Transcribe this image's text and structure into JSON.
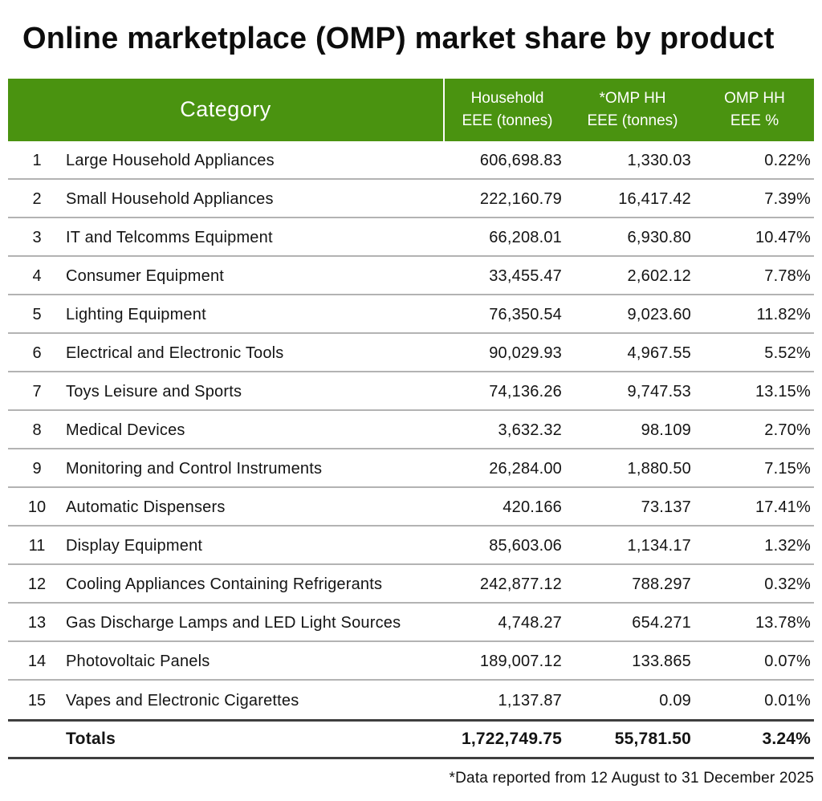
{
  "title": "Online marketplace (OMP) market share by product",
  "table": {
    "headers": {
      "category": "Category",
      "household": {
        "line1": "Household",
        "line2": "EEE (tonnes)"
      },
      "omp": {
        "line1": "*OMP HH",
        "line2": "EEE (tonnes)"
      },
      "pct": {
        "line1": "OMP HH",
        "line2": "EEE %"
      }
    },
    "rows": [
      {
        "num": "1",
        "category": "Large Household Appliances",
        "household_eee": "606,698.83",
        "omp_eee": "1,330.03",
        "omp_pct": "0.22%"
      },
      {
        "num": "2",
        "category": "Small Household Appliances",
        "household_eee": "222,160.79",
        "omp_eee": "16,417.42",
        "omp_pct": "7.39%"
      },
      {
        "num": "3",
        "category": "IT and Telcomms Equipment",
        "household_eee": "66,208.01",
        "omp_eee": "6,930.80",
        "omp_pct": "10.47%"
      },
      {
        "num": "4",
        "category": "Consumer Equipment",
        "household_eee": "33,455.47",
        "omp_eee": "2,602.12",
        "omp_pct": "7.78%"
      },
      {
        "num": "5",
        "category": "Lighting Equipment",
        "household_eee": "76,350.54",
        "omp_eee": "9,023.60",
        "omp_pct": "11.82%"
      },
      {
        "num": "6",
        "category": "Electrical and Electronic Tools",
        "household_eee": "90,029.93",
        "omp_eee": "4,967.55",
        "omp_pct": "5.52%"
      },
      {
        "num": "7",
        "category": "Toys Leisure and Sports",
        "household_eee": "74,136.26",
        "omp_eee": "9,747.53",
        "omp_pct": "13.15%"
      },
      {
        "num": "8",
        "category": "Medical Devices",
        "household_eee": "3,632.32",
        "omp_eee": "98.109",
        "omp_pct": "2.70%"
      },
      {
        "num": "9",
        "category": "Monitoring and Control Instruments",
        "household_eee": "26,284.00",
        "omp_eee": "1,880.50",
        "omp_pct": "7.15%"
      },
      {
        "num": "10",
        "category": "Automatic Dispensers",
        "household_eee": "420.166",
        "omp_eee": "73.137",
        "omp_pct": "17.41%"
      },
      {
        "num": "11",
        "category": "Display Equipment",
        "household_eee": "85,603.06",
        "omp_eee": "1,134.17",
        "omp_pct": "1.32%"
      },
      {
        "num": "12",
        "category": "Cooling Appliances Containing Refrigerants",
        "household_eee": "242,877.12",
        "omp_eee": "788.297",
        "omp_pct": "0.32%"
      },
      {
        "num": "13",
        "category": "Gas Discharge Lamps and LED Light Sources",
        "household_eee": "4,748.27",
        "omp_eee": "654.271",
        "omp_pct": "13.78%"
      },
      {
        "num": "14",
        "category": "Photovoltaic Panels",
        "household_eee": "189,007.12",
        "omp_eee": "133.865",
        "omp_pct": "0.07%"
      },
      {
        "num": "15",
        "category": "Vapes and Electronic Cigarettes",
        "household_eee": "1,137.87",
        "omp_eee": "0.09",
        "omp_pct": "0.01%"
      }
    ],
    "totals": {
      "label": "Totals",
      "household_eee": "1,722,749.75",
      "omp_eee": "55,781.50",
      "omp_pct": "3.24%"
    }
  },
  "footnote": "*Data reported from 12 August to 31 December 2025",
  "colors": {
    "header_green": "#4A9310",
    "header_text": "#FFFFFF",
    "row_separator": "#B3B3B3",
    "totals_line": "#3F3F3F",
    "text": "#141414"
  },
  "chart_data": {
    "type": "table",
    "title": "Online marketplace (OMP) market share by product",
    "columns": [
      "#",
      "Category",
      "Household EEE (tonnes)",
      "*OMP HH EEE (tonnes)",
      "OMP HH EEE %"
    ],
    "rows": [
      [
        1,
        "Large Household Appliances",
        606698.83,
        1330.03,
        0.22
      ],
      [
        2,
        "Small Household Appliances",
        222160.79,
        16417.42,
        7.39
      ],
      [
        3,
        "IT and Telcomms Equipment",
        66208.01,
        6930.8,
        10.47
      ],
      [
        4,
        "Consumer Equipment",
        33455.47,
        2602.12,
        7.78
      ],
      [
        5,
        "Lighting Equipment",
        76350.54,
        9023.6,
        11.82
      ],
      [
        6,
        "Electrical and Electronic Tools",
        90029.93,
        4967.55,
        5.52
      ],
      [
        7,
        "Toys Leisure and Sports",
        74136.26,
        9747.53,
        13.15
      ],
      [
        8,
        "Medical Devices",
        3632.32,
        98.109,
        2.7
      ],
      [
        9,
        "Monitoring and Control Instruments",
        26284.0,
        1880.5,
        7.15
      ],
      [
        10,
        "Automatic Dispensers",
        420.166,
        73.137,
        17.41
      ],
      [
        11,
        "Display Equipment",
        85603.06,
        1134.17,
        1.32
      ],
      [
        12,
        "Cooling Appliances Containing Refrigerants",
        242877.12,
        788.297,
        0.32
      ],
      [
        13,
        "Gas Discharge Lamps and LED Light Sources",
        4748.27,
        654.271,
        13.78
      ],
      [
        14,
        "Photovoltaic Panels",
        189007.12,
        133.865,
        0.07
      ],
      [
        15,
        "Vapes and Electronic Cigarettes",
        1137.87,
        0.09,
        0.01
      ]
    ],
    "totals_row": [
      "Totals",
      1722749.75,
      55781.5,
      3.24
    ],
    "footnote": "*Data reported from 12 August to 31 December 2025",
    "units": "tonnes"
  }
}
